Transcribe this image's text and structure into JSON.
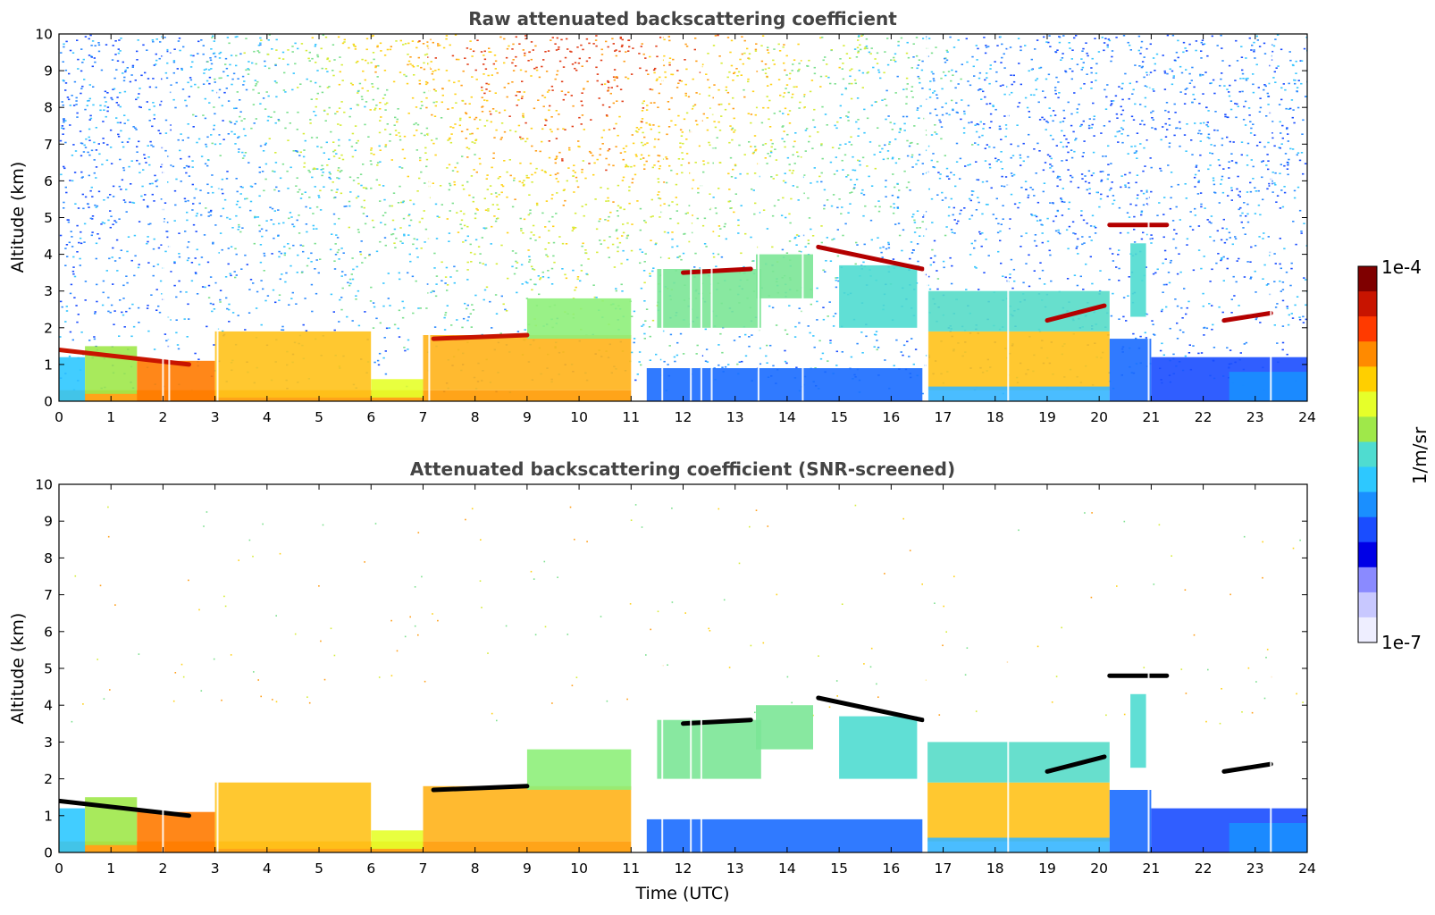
{
  "chart_data": [
    {
      "type": "heatmap",
      "title": "Raw attenuated backscattering coefficient",
      "xlabel": "",
      "ylabel": "Altitude (km)",
      "xlim": [
        0,
        24
      ],
      "ylim": [
        0,
        10
      ],
      "x_ticks": [
        "0",
        "1",
        "2",
        "3",
        "4",
        "5",
        "6",
        "7",
        "8",
        "9",
        "10",
        "11",
        "12",
        "13",
        "14",
        "15",
        "16",
        "17",
        "18",
        "19",
        "20",
        "21",
        "22",
        "23",
        "24"
      ],
      "y_ticks": [
        "0",
        "1",
        "2",
        "3",
        "4",
        "5",
        "6",
        "7",
        "8",
        "9",
        "10"
      ],
      "noise": "dense noise across all altitudes",
      "dropout_times": [
        2.0,
        2.12,
        3.05,
        7.12,
        11.6,
        12.15,
        12.35,
        12.55,
        13.45,
        14.3,
        16.65,
        16.7,
        18.25,
        20.95,
        23.3
      ],
      "features": [
        {
          "kind": "layer",
          "t0": 0.0,
          "t1": 11.0,
          "y0": 0,
          "y1": 0.3,
          "color": "#ff9a00"
        },
        {
          "kind": "layer",
          "t0": 0.0,
          "t1": 0.5,
          "y0": 0,
          "y1": 1.2,
          "color": "#2dc8ff"
        },
        {
          "kind": "layer",
          "t0": 0.5,
          "t1": 1.5,
          "y0": 0.2,
          "y1": 1.5,
          "color": "#9fe84a"
        },
        {
          "kind": "layer",
          "t0": 1.5,
          "t1": 3.0,
          "y0": 0,
          "y1": 1.1,
          "color": "#ff7a00"
        },
        {
          "kind": "layer",
          "t0": 3.0,
          "t1": 6.0,
          "y0": 0.1,
          "y1": 1.9,
          "color": "#ffc21a"
        },
        {
          "kind": "layer",
          "t0": 6.0,
          "t1": 7.0,
          "y0": 0.1,
          "y1": 0.6,
          "color": "#e6ff2a"
        },
        {
          "kind": "layer",
          "t0": 7.0,
          "t1": 11.0,
          "y0": 0.3,
          "y1": 1.8,
          "color": "#ffb31a"
        },
        {
          "kind": "layer",
          "t0": 9.0,
          "t1": 11.0,
          "y0": 1.7,
          "y1": 2.8,
          "color": "#8ef07a"
        },
        {
          "kind": "layer",
          "t0": 11.3,
          "t1": 16.6,
          "y0": 0,
          "y1": 0.9,
          "color": "#1a6bff"
        },
        {
          "kind": "layer",
          "t0": 11.5,
          "t1": 13.5,
          "y0": 2.0,
          "y1": 3.6,
          "color": "#7be596"
        },
        {
          "kind": "layer",
          "t0": 13.4,
          "t1": 14.5,
          "y0": 2.8,
          "y1": 4.0,
          "color": "#7be596"
        },
        {
          "kind": "layer",
          "t0": 15.0,
          "t1": 16.5,
          "y0": 2.0,
          "y1": 3.7,
          "color": "#4fdcd0"
        },
        {
          "kind": "layer",
          "t0": 16.7,
          "t1": 20.2,
          "y0": 0.3,
          "y1": 1.9,
          "color": "#ffc21a"
        },
        {
          "kind": "layer",
          "t0": 16.7,
          "t1": 20.2,
          "y0": 0,
          "y1": 0.4,
          "color": "#36b6ff"
        },
        {
          "kind": "layer",
          "t0": 16.7,
          "t1": 20.2,
          "y0": 1.9,
          "y1": 3.0,
          "color": "#57dcc8"
        },
        {
          "kind": "layer",
          "t0": 20.2,
          "t1": 21.0,
          "y0": 0,
          "y1": 1.7,
          "color": "#1a6bff"
        },
        {
          "kind": "layer",
          "t0": 20.6,
          "t1": 20.9,
          "y0": 2.3,
          "y1": 4.3,
          "color": "#4fdcd0"
        },
        {
          "kind": "layer",
          "t0": 21.0,
          "t1": 24.0,
          "y0": 0,
          "y1": 1.2,
          "color": "#1a4dff"
        },
        {
          "kind": "layer",
          "t0": 22.5,
          "t1": 24.0,
          "y0": 0,
          "y1": 0.8,
          "color": "#1a8fff"
        },
        {
          "kind": "line",
          "t0": 0.0,
          "t1": 2.5,
          "y0": 1.4,
          "y1": 1.0,
          "color": "#c81400"
        },
        {
          "kind": "line",
          "t0": 7.2,
          "t1": 9.0,
          "y0": 1.7,
          "y1": 1.8,
          "color": "#c81400"
        },
        {
          "kind": "line",
          "t0": 12.0,
          "t1": 13.3,
          "y0": 3.5,
          "y1": 3.6,
          "color": "#b40000"
        },
        {
          "kind": "line",
          "t0": 14.6,
          "t1": 16.6,
          "y0": 4.2,
          "y1": 3.6,
          "color": "#b40000"
        },
        {
          "kind": "line",
          "t0": 19.0,
          "t1": 20.1,
          "y0": 2.2,
          "y1": 2.6,
          "color": "#b40000"
        },
        {
          "kind": "line",
          "t0": 20.2,
          "t1": 21.3,
          "y0": 4.8,
          "y1": 4.8,
          "color": "#b40000"
        },
        {
          "kind": "line",
          "t0": 22.4,
          "t1": 23.3,
          "y0": 2.2,
          "y1": 2.4,
          "color": "#b40000"
        }
      ]
    },
    {
      "type": "heatmap",
      "title": "Attenuated backscattering coefficient (SNR-screened)",
      "xlabel": "Time (UTC)",
      "ylabel": "Altitude (km)",
      "xlim": [
        0,
        24
      ],
      "ylim": [
        0,
        10
      ],
      "x_ticks": [
        "0",
        "1",
        "2",
        "3",
        "4",
        "5",
        "6",
        "7",
        "8",
        "9",
        "10",
        "11",
        "12",
        "13",
        "14",
        "15",
        "16",
        "17",
        "18",
        "19",
        "20",
        "21",
        "22",
        "23",
        "24"
      ],
      "y_ticks": [
        "0",
        "1",
        "2",
        "3",
        "4",
        "5",
        "6",
        "7",
        "8",
        "9",
        "10"
      ],
      "noise": "sparse speckles only",
      "dropout_times": [
        2.0,
        3.05,
        11.6,
        12.15,
        12.35,
        16.65,
        18.25,
        20.95,
        23.3
      ],
      "features": [
        {
          "kind": "layer",
          "t0": 0.0,
          "t1": 11.0,
          "y0": 0,
          "y1": 0.3,
          "color": "#ff9a00"
        },
        {
          "kind": "layer",
          "t0": 0.0,
          "t1": 0.5,
          "y0": 0,
          "y1": 1.2,
          "color": "#2dc8ff"
        },
        {
          "kind": "layer",
          "t0": 0.5,
          "t1": 1.5,
          "y0": 0.2,
          "y1": 1.5,
          "color": "#9fe84a"
        },
        {
          "kind": "layer",
          "t0": 1.5,
          "t1": 3.0,
          "y0": 0,
          "y1": 1.1,
          "color": "#ff7a00"
        },
        {
          "kind": "layer",
          "t0": 3.0,
          "t1": 6.0,
          "y0": 0.1,
          "y1": 1.9,
          "color": "#ffc21a"
        },
        {
          "kind": "layer",
          "t0": 6.0,
          "t1": 7.0,
          "y0": 0.1,
          "y1": 0.6,
          "color": "#e6ff2a"
        },
        {
          "kind": "layer",
          "t0": 7.0,
          "t1": 11.0,
          "y0": 0.3,
          "y1": 1.8,
          "color": "#ffb31a"
        },
        {
          "kind": "layer",
          "t0": 9.0,
          "t1": 11.0,
          "y0": 1.7,
          "y1": 2.8,
          "color": "#8ef07a"
        },
        {
          "kind": "layer",
          "t0": 11.3,
          "t1": 16.6,
          "y0": 0,
          "y1": 0.9,
          "color": "#1a6bff"
        },
        {
          "kind": "layer",
          "t0": 11.5,
          "t1": 13.5,
          "y0": 2.0,
          "y1": 3.6,
          "color": "#7be596"
        },
        {
          "kind": "layer",
          "t0": 13.4,
          "t1": 14.5,
          "y0": 2.8,
          "y1": 4.0,
          "color": "#7be596"
        },
        {
          "kind": "layer",
          "t0": 15.0,
          "t1": 16.5,
          "y0": 2.0,
          "y1": 3.7,
          "color": "#4fdcd0"
        },
        {
          "kind": "layer",
          "t0": 16.7,
          "t1": 20.2,
          "y0": 0.3,
          "y1": 1.9,
          "color": "#ffc21a"
        },
        {
          "kind": "layer",
          "t0": 16.7,
          "t1": 20.2,
          "y0": 0,
          "y1": 0.4,
          "color": "#36b6ff"
        },
        {
          "kind": "layer",
          "t0": 16.7,
          "t1": 20.2,
          "y0": 1.9,
          "y1": 3.0,
          "color": "#57dcc8"
        },
        {
          "kind": "layer",
          "t0": 20.2,
          "t1": 21.0,
          "y0": 0,
          "y1": 1.7,
          "color": "#1a6bff"
        },
        {
          "kind": "layer",
          "t0": 20.6,
          "t1": 20.9,
          "y0": 2.3,
          "y1": 4.3,
          "color": "#4fdcd0"
        },
        {
          "kind": "layer",
          "t0": 21.0,
          "t1": 24.0,
          "y0": 0,
          "y1": 1.2,
          "color": "#1a4dff"
        },
        {
          "kind": "layer",
          "t0": 22.5,
          "t1": 24.0,
          "y0": 0,
          "y1": 0.8,
          "color": "#1a8fff"
        },
        {
          "kind": "line",
          "t0": 0.0,
          "t1": 2.5,
          "y0": 1.4,
          "y1": 1.0,
          "color": "#000000"
        },
        {
          "kind": "line",
          "t0": 7.2,
          "t1": 9.0,
          "y0": 1.7,
          "y1": 1.8,
          "color": "#000000"
        },
        {
          "kind": "line",
          "t0": 12.0,
          "t1": 13.3,
          "y0": 3.5,
          "y1": 3.6,
          "color": "#000000"
        },
        {
          "kind": "line",
          "t0": 14.6,
          "t1": 16.6,
          "y0": 4.2,
          "y1": 3.6,
          "color": "#000000"
        },
        {
          "kind": "line",
          "t0": 19.0,
          "t1": 20.1,
          "y0": 2.2,
          "y1": 2.6,
          "color": "#000000"
        },
        {
          "kind": "line",
          "t0": 20.2,
          "t1": 21.3,
          "y0": 4.8,
          "y1": 4.8,
          "color": "#000000"
        },
        {
          "kind": "line",
          "t0": 22.4,
          "t1": 23.3,
          "y0": 2.2,
          "y1": 2.4,
          "color": "#000000"
        }
      ]
    }
  ],
  "colorbar": {
    "label": "1/m/sr",
    "max_label": "1e-4",
    "min_label": "1e-7",
    "colors": [
      "#ffffff",
      "#7f0000",
      "#c81400",
      "#ff3a00",
      "#ff8a00",
      "#ffcf00",
      "#e6ff2a",
      "#9fe84a",
      "#4fdcd0",
      "#2dc8ff",
      "#1a8fff",
      "#1a4dff",
      "#0000e6",
      "#8a8aff",
      "#c8c8ff",
      "#eeeeff"
    ]
  }
}
